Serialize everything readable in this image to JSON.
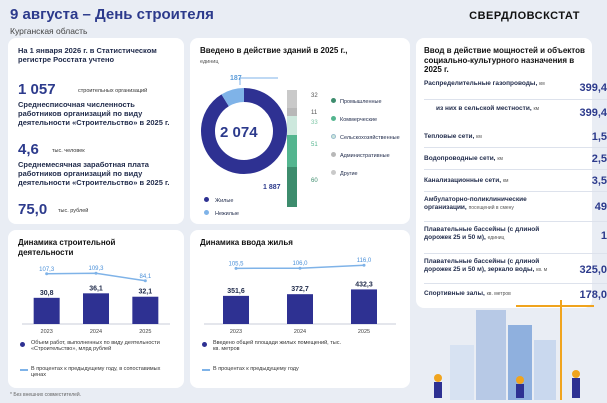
{
  "header": {
    "title": "9 августа – День строителя",
    "subtitle": "Курганская область",
    "brand": "СВЕРДЛОВСКСТАТ"
  },
  "left": {
    "intro": "На 1 января 2026 г. в Статистическом регистре Росстата учтено",
    "orgs_value": "1 057",
    "orgs_unit": "строительных организаций",
    "emp_label": "Среднесписочная численность работников организаций по виду деятельности «Строительство» в 2025 г.",
    "emp_value": "4,6",
    "emp_unit": "тыс. человек",
    "sal_label": "Среднемесячная заработная плата работников организаций по виду деятельности «Строительство» в 2025 г.",
    "sal_value": "75,0",
    "sal_unit": "тыс. рублей"
  },
  "middle": {
    "title": "Введено в действие зданий в 2025 г.,",
    "unit": "единиц",
    "total": "2 074",
    "donut_large": "1 887",
    "donut_small": "187",
    "donut_legend": [
      "Жилые",
      "Нежилые"
    ],
    "stack_labels": [
      "32",
      "11",
      "33",
      "51",
      "60"
    ],
    "stack_legend": [
      "Промышленные",
      "Коммерческие",
      "Сельскохозяйственные",
      "Административные",
      "Другие"
    ],
    "colors": {
      "living": "#2e3192",
      "nonliving": "#7fb3e8",
      "stack": [
        "#c9c9c9",
        "#b8b8b8",
        "#cde8dd",
        "#54b58f",
        "#3d8c6d"
      ]
    }
  },
  "right": {
    "title": "Ввод в действие мощностей и объектов социально-культурного назначения в 2025 г.",
    "rows": [
      {
        "label": "Распределительные газопроводы,",
        "unit": "км",
        "value": "399,4"
      },
      {
        "label": "из них в сельской местности,",
        "unit": "км",
        "value": "399,4"
      },
      {
        "label": "Тепловые сети,",
        "unit": "км",
        "value": "1,5"
      },
      {
        "label": "Водопроводные сети,",
        "unit": "км",
        "value": "2,5"
      },
      {
        "label": "Канализационные сети,",
        "unit": "км",
        "value": "3,5"
      },
      {
        "label": "Амбулаторно-поликлинические организации,",
        "unit": "посещений в смену",
        "value": "49"
      },
      {
        "label": "Плавательные бассейны (с длиной дорожек 25 и 50 м),",
        "unit": "единиц",
        "value": "1"
      },
      {
        "label": "Плавательные бассейны (с длиной дорожек 25 и 50 м), зеркало воды,",
        "unit": "кв. м",
        "value": "325,0"
      },
      {
        "label": "Спортивные залы,",
        "unit": "кв. метров",
        "value": "178,0"
      }
    ]
  },
  "chart_data": [
    {
      "type": "bar",
      "title": "Динамика строительной деятельности",
      "categories": [
        "2023",
        "2024",
        "2025"
      ],
      "bar_labels": [
        "30,8",
        "36,1",
        "32,1"
      ],
      "line_labels": [
        "107,3",
        "109,3",
        "84,1"
      ],
      "series": [
        {
          "name": "Объем работ, выполненных по виду деятельности «Строительство», млрд рублей",
          "values": [
            30.8,
            36.1,
            32.1
          ]
        },
        {
          "name": "В процентах к предыдущему году, в сопоставимых ценах",
          "values": [
            107.3,
            109.3,
            84.1
          ]
        }
      ],
      "ylim": [
        0,
        40
      ],
      "line_ylim": [
        60,
        140
      ]
    },
    {
      "type": "bar",
      "title": "Динамика ввода жилья",
      "categories": [
        "2023",
        "2024",
        "2025"
      ],
      "bar_labels": [
        "351,6",
        "372,7",
        "432,3"
      ],
      "line_labels": [
        "105,5",
        "106,0",
        "116,0"
      ],
      "series": [
        {
          "name": "Введено общей площади жилых помещений, тыс. кв. метров",
          "values": [
            351.6,
            372.7,
            432.3
          ]
        },
        {
          "name": "В процентах к предыдущему году",
          "values": [
            105.5,
            106.0,
            116.0
          ]
        }
      ],
      "ylim": [
        0,
        500
      ],
      "line_ylim": [
        60,
        140
      ]
    }
  ],
  "footnote": "* Без внешних совместителей."
}
